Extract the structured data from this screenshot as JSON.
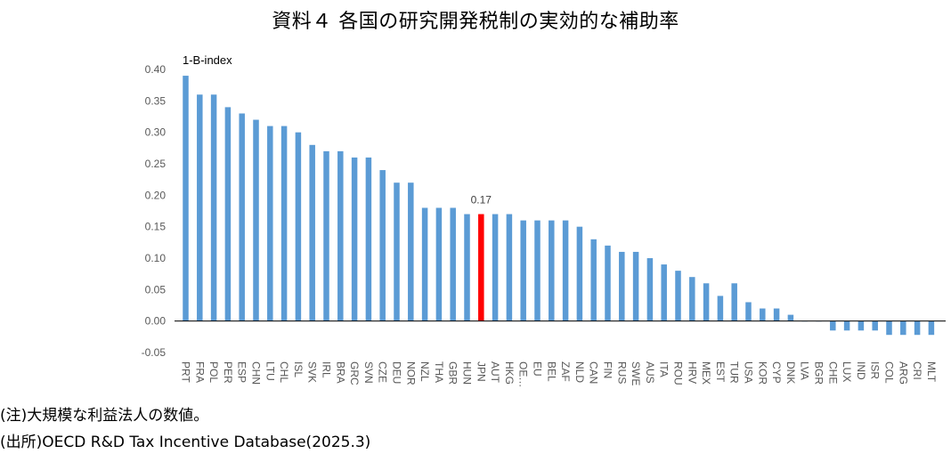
{
  "title": "資料４ 各国の研究開発税制の実効的な補助率",
  "notes": {
    "note": "(注)大規模な利益法人の数値。",
    "source": "(出所)OECD R&D Tax Incentive Database(2025.3)"
  },
  "colors": {
    "bar": "#5B9BD5",
    "highlight": "#FF0000",
    "axis": "#000000",
    "tick": "#595959"
  },
  "chart_data": {
    "type": "bar",
    "ylabel": "1-B-index",
    "ylim": [
      -0.05,
      0.4
    ],
    "yticks": [
      0.4,
      0.35,
      0.3,
      0.25,
      0.2,
      0.15,
      0.1,
      0.05,
      0.0,
      -0.05
    ],
    "grid": false,
    "highlight_category": "JPN",
    "annotation": {
      "category": "JPN",
      "text": "0.17"
    },
    "categories": [
      "PRT",
      "FRA",
      "POL",
      "PER",
      "ESP",
      "CHN",
      "LTU",
      "CHL",
      "ISL",
      "SVK",
      "IRL",
      "BRA",
      "GRC",
      "SVN",
      "CZE",
      "DEU",
      "NOR",
      "NZL",
      "THA",
      "GBR",
      "HUN",
      "JPN",
      "AUT",
      "HKG",
      "OE…",
      "EU",
      "BEL",
      "ZAF",
      "NLD",
      "CAN",
      "FIN",
      "RUS",
      "SWE",
      "AUS",
      "ITA",
      "ROU",
      "HRV",
      "MEX",
      "EST",
      "TUR",
      "USA",
      "KOR",
      "CYP",
      "DNK",
      "LVA",
      "BGR",
      "CHE",
      "LUX",
      "IND",
      "ISR",
      "COL",
      "ARG",
      "CRI",
      "MLT"
    ],
    "values": [
      0.39,
      0.36,
      0.36,
      0.34,
      0.33,
      0.32,
      0.31,
      0.31,
      0.3,
      0.28,
      0.27,
      0.27,
      0.26,
      0.26,
      0.24,
      0.22,
      0.22,
      0.18,
      0.18,
      0.18,
      0.17,
      0.17,
      0.17,
      0.17,
      0.16,
      0.16,
      0.16,
      0.16,
      0.15,
      0.13,
      0.12,
      0.11,
      0.11,
      0.1,
      0.09,
      0.08,
      0.07,
      0.06,
      0.04,
      0.06,
      0.03,
      0.02,
      0.02,
      0.01,
      0.0,
      0.0,
      -0.015,
      -0.015,
      -0.015,
      -0.015,
      -0.022,
      -0.022,
      -0.022,
      -0.022
    ]
  }
}
